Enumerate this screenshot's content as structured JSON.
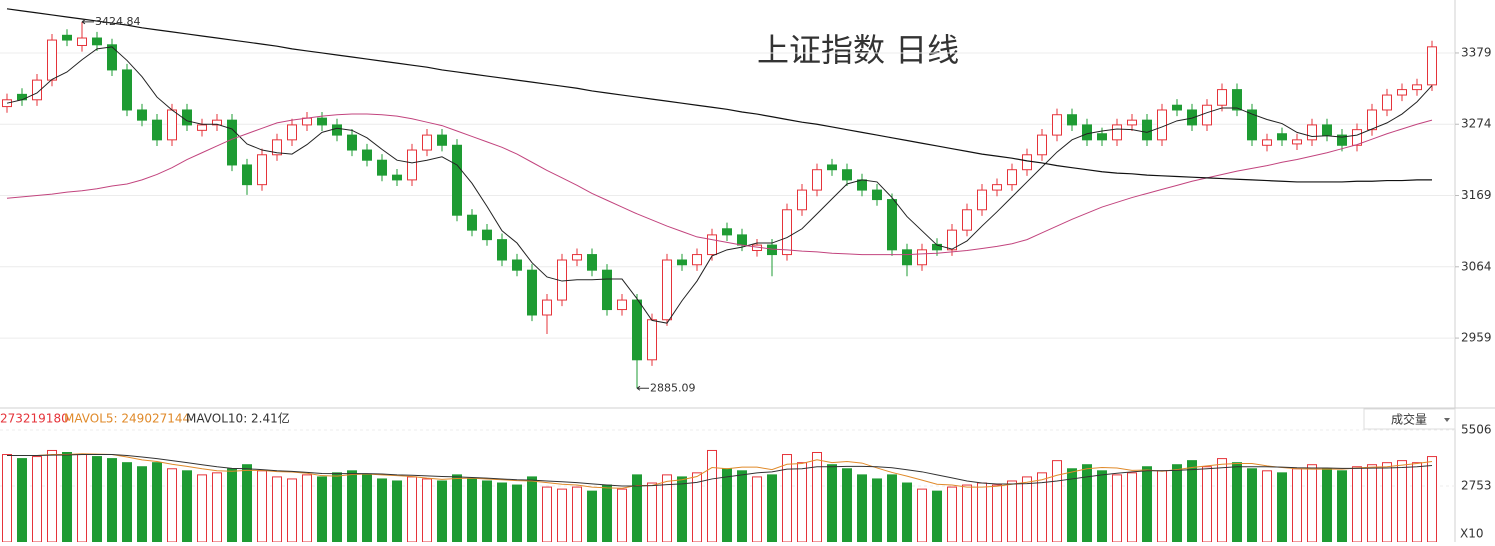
{
  "chart_data": [
    {
      "type": "candlestick",
      "title": "上证指数 日线",
      "ylim": [
        2856,
        3457
      ],
      "yticks": [
        2959,
        3064,
        3169,
        3274,
        3379
      ],
      "grid": true,
      "up_color": "#e5333a",
      "down_color": "#1e9b33",
      "open": [
        3300,
        3318,
        3310,
        3339,
        3405,
        3390,
        3401,
        3391,
        3354,
        3295,
        3280,
        3251,
        3295,
        3265,
        3273,
        3280,
        3214,
        3185,
        3229,
        3251,
        3273,
        3283,
        3273,
        3258,
        3236,
        3221,
        3199,
        3192,
        3236,
        3258,
        3243,
        3140,
        3118,
        3104,
        3074,
        3059,
        2993,
        3015,
        3074,
        3082,
        3059,
        3001,
        3015,
        2927,
        2986,
        3074,
        3067,
        3082,
        3120,
        3111,
        3088,
        3096,
        3082,
        3148,
        3177,
        3214,
        3207,
        3192,
        3177,
        3163,
        3089,
        3067,
        3097,
        3089,
        3118,
        3148,
        3177,
        3185,
        3207,
        3229,
        3258,
        3288,
        3273,
        3260,
        3251,
        3273,
        3280,
        3251,
        3302,
        3295,
        3273,
        3302,
        3325,
        3295,
        3243,
        3260,
        3245,
        3251,
        3273,
        3258,
        3243,
        3266,
        3295,
        3317,
        3325,
        3332
      ],
      "close": [
        3310,
        3310,
        3339,
        3398,
        3398,
        3401,
        3391,
        3354,
        3295,
        3280,
        3251,
        3295,
        3273,
        3273,
        3280,
        3214,
        3185,
        3229,
        3251,
        3273,
        3283,
        3273,
        3258,
        3236,
        3221,
        3199,
        3192,
        3236,
        3258,
        3243,
        3140,
        3118,
        3104,
        3074,
        3059,
        2993,
        3015,
        3074,
        3082,
        3059,
        3001,
        3015,
        2927,
        2986,
        3074,
        3067,
        3082,
        3111,
        3111,
        3096,
        3096,
        3082,
        3148,
        3177,
        3207,
        3207,
        3192,
        3177,
        3163,
        3089,
        3067,
        3089,
        3089,
        3118,
        3148,
        3177,
        3185,
        3207,
        3229,
        3258,
        3288,
        3273,
        3251,
        3251,
        3273,
        3280,
        3251,
        3295,
        3295,
        3273,
        3302,
        3325,
        3295,
        3251,
        3251,
        3251,
        3251,
        3273,
        3258,
        3243,
        3266,
        3295,
        3317,
        3325,
        3332,
        3388
      ],
      "high": [
        3319,
        3327,
        3348,
        3407,
        3414,
        3424.84,
        3410,
        3400,
        3363,
        3304,
        3289,
        3304,
        3304,
        3282,
        3289,
        3289,
        3223,
        3238,
        3260,
        3282,
        3292,
        3292,
        3282,
        3267,
        3245,
        3230,
        3208,
        3245,
        3267,
        3267,
        3252,
        3149,
        3127,
        3113,
        3083,
        3068,
        3024,
        3083,
        3091,
        3091,
        3068,
        3024,
        3024,
        2995,
        3083,
        3083,
        3091,
        3120,
        3129,
        3120,
        3105,
        3105,
        3157,
        3186,
        3216,
        3223,
        3216,
        3201,
        3186,
        3172,
        3098,
        3098,
        3106,
        3127,
        3157,
        3186,
        3194,
        3216,
        3238,
        3267,
        3297,
        3297,
        3282,
        3269,
        3282,
        3289,
        3289,
        3304,
        3311,
        3304,
        3311,
        3334,
        3334,
        3304,
        3260,
        3269,
        3260,
        3282,
        3282,
        3267,
        3275,
        3304,
        3326,
        3334,
        3341,
        3397
      ],
      "low": [
        3291,
        3301,
        3301,
        3330,
        3389,
        3381,
        3382,
        3345,
        3286,
        3271,
        3242,
        3242,
        3264,
        3256,
        3264,
        3205,
        3170,
        3176,
        3220,
        3242,
        3264,
        3264,
        3249,
        3227,
        3212,
        3190,
        3183,
        3183,
        3227,
        3234,
        3131,
        3109,
        3095,
        3065,
        3050,
        2984,
        2965,
        3006,
        3065,
        3050,
        2992,
        2992,
        2885.09,
        2918,
        2977,
        3058,
        3058,
        3073,
        3102,
        3087,
        3079,
        3050,
        3073,
        3139,
        3168,
        3198,
        3183,
        3168,
        3154,
        3080,
        3050,
        3058,
        3080,
        3080,
        3109,
        3139,
        3168,
        3176,
        3198,
        3220,
        3249,
        3264,
        3242,
        3242,
        3242,
        3264,
        3242,
        3242,
        3286,
        3264,
        3264,
        3293,
        3286,
        3242,
        3234,
        3242,
        3236,
        3242,
        3249,
        3234,
        3234,
        3257,
        3286,
        3308,
        3316,
        3323
      ],
      "lines": [
        {
          "color": "#222222",
          "width": 1,
          "values": [
            3305,
            3310,
            3320,
            3340,
            3351,
            3369,
            3385,
            3388,
            3368,
            3344,
            3314,
            3295,
            3279,
            3274,
            3274,
            3267,
            3245,
            3236,
            3232,
            3230,
            3244,
            3262,
            3268,
            3265,
            3254,
            3237,
            3221,
            3217,
            3221,
            3226,
            3214,
            3187,
            3153,
            3117,
            3099,
            3070,
            3049,
            3043,
            3045,
            3045,
            3046,
            3046,
            3017,
            2985,
            2981,
            3014,
            3043,
            3080,
            3089,
            3093,
            3099,
            3099,
            3107,
            3120,
            3142,
            3164,
            3186,
            3192,
            3189,
            3166,
            3138,
            3117,
            3096,
            3090,
            3102,
            3124,
            3145,
            3167,
            3189,
            3211,
            3233,
            3251,
            3260,
            3264,
            3267,
            3266,
            3262,
            3270,
            3279,
            3283,
            3291,
            3298,
            3298,
            3289,
            3281,
            3275,
            3262,
            3256,
            3257,
            3255,
            3258,
            3267,
            3276,
            3289,
            3307,
            3331
          ]
        },
        {
          "color": "#c2447e",
          "width": 1,
          "values": [
            3165,
            3167,
            3169,
            3171,
            3174,
            3176,
            3179,
            3183,
            3186,
            3192,
            3200,
            3210,
            3222,
            3232,
            3242,
            3252,
            3260,
            3268,
            3276,
            3280,
            3283,
            3286,
            3288,
            3289,
            3289,
            3288,
            3286,
            3282,
            3277,
            3272,
            3264,
            3256,
            3248,
            3240,
            3230,
            3218,
            3206,
            3195,
            3184,
            3172,
            3162,
            3152,
            3142,
            3133,
            3124,
            3116,
            3108,
            3104,
            3100,
            3096,
            3093,
            3090,
            3089,
            3087,
            3086,
            3084,
            3083,
            3082,
            3082,
            3082,
            3082,
            3083,
            3084,
            3086,
            3088,
            3091,
            3094,
            3098,
            3104,
            3114,
            3124,
            3134,
            3143,
            3152,
            3159,
            3166,
            3172,
            3178,
            3184,
            3190,
            3195,
            3200,
            3205,
            3209,
            3213,
            3218,
            3222,
            3227,
            3232,
            3238,
            3244,
            3252,
            3260,
            3267,
            3274,
            3280
          ]
        },
        {
          "color": "#111111",
          "width": 1.2,
          "values": [
            3444,
            3441,
            3438,
            3435,
            3432,
            3429,
            3426,
            3423,
            3420,
            3416,
            3413,
            3410,
            3407,
            3404,
            3401,
            3398,
            3395,
            3392,
            3389,
            3385,
            3382,
            3379,
            3376,
            3373,
            3370,
            3367,
            3364,
            3361,
            3358,
            3354,
            3351,
            3348,
            3345,
            3342,
            3339,
            3336,
            3333,
            3330,
            3327,
            3323,
            3320,
            3317,
            3314,
            3311,
            3308,
            3305,
            3302,
            3299,
            3296,
            3292,
            3289,
            3285,
            3281,
            3277,
            3274,
            3270,
            3266,
            3262,
            3258,
            3254,
            3250,
            3246,
            3242,
            3238,
            3234,
            3230,
            3227,
            3224,
            3220,
            3217,
            3213,
            3210,
            3207,
            3204,
            3202,
            3201,
            3199,
            3198,
            3197,
            3196,
            3195,
            3194,
            3193,
            3192,
            3191,
            3190,
            3189,
            3189,
            3189,
            3189,
            3190,
            3190,
            3191,
            3191,
            3192,
            3192
          ]
        }
      ]
    },
    {
      "type": "bar",
      "ylim": [
        0,
        5506
      ],
      "yticks": [
        2753,
        5506
      ],
      "unit_label": "X10",
      "vol_label": "273219180",
      "vol_color": "#e5333a",
      "mavol5_label": "MAVOL5: 249027144",
      "mavol5_color": "#e08a2a",
      "mavol10_label": "MAVOL10: 2.41亿",
      "mavol10_color": "#333333",
      "button": "成交量",
      "values": [
        4300,
        4100,
        4200,
        4500,
        4400,
        4300,
        4200,
        4100,
        3900,
        3700,
        3900,
        3600,
        3500,
        3300,
        3400,
        3600,
        3800,
        3500,
        3200,
        3100,
        3300,
        3200,
        3400,
        3500,
        3300,
        3100,
        3000,
        3200,
        3100,
        3000,
        3300,
        3100,
        3000,
        2900,
        2800,
        3200,
        2700,
        2600,
        2700,
        2500,
        2800,
        2600,
        3300,
        2900,
        3300,
        3200,
        3400,
        4500,
        3600,
        3500,
        3200,
        3300,
        4300,
        3900,
        4400,
        3800,
        3600,
        3300,
        3100,
        3300,
        2900,
        2600,
        2500,
        2700,
        2800,
        2900,
        2800,
        3000,
        3200,
        3400,
        4000,
        3600,
        3800,
        3500,
        3300,
        3400,
        3700,
        3500,
        3800,
        4000,
        3700,
        4100,
        3900,
        3600,
        3500,
        3400,
        3600,
        3800,
        3600,
        3500,
        3700,
        3800,
        3900,
        4000,
        3900,
        4200
      ],
      "lines": [
        {
          "color": "#e08a2a",
          "values": [
            4250,
            4250,
            4250,
            4300,
            4300,
            4340,
            4320,
            4300,
            4180,
            4040,
            3960,
            3820,
            3720,
            3600,
            3500,
            3480,
            3520,
            3520,
            3460,
            3440,
            3380,
            3260,
            3240,
            3320,
            3340,
            3300,
            3260,
            3220,
            3140,
            3080,
            3120,
            3140,
            3100,
            3060,
            3020,
            3000,
            2920,
            2840,
            2800,
            2700,
            2660,
            2640,
            2780,
            2780,
            2980,
            3060,
            3220,
            3660,
            3600,
            3680,
            3680,
            3560,
            3820,
            3860,
            4040,
            3900,
            3960,
            3880,
            3640,
            3420,
            3240,
            3040,
            2840,
            2800,
            2700,
            2700,
            2740,
            2840,
            2940,
            3060,
            3280,
            3440,
            3600,
            3660,
            3640,
            3520,
            3540,
            3480,
            3560,
            3660,
            3740,
            3820,
            3860,
            3860,
            3740,
            3660,
            3600,
            3580,
            3580,
            3580,
            3640,
            3680,
            3700,
            3780,
            3860,
            3960
          ]
        },
        {
          "color": "#333333",
          "values": [
            4250,
            4250,
            4250,
            4270,
            4280,
            4300,
            4300,
            4300,
            4250,
            4180,
            4100,
            4000,
            3900,
            3800,
            3700,
            3620,
            3600,
            3560,
            3500,
            3470,
            3420,
            3370,
            3360,
            3360,
            3360,
            3340,
            3300,
            3280,
            3250,
            3220,
            3200,
            3170,
            3140,
            3100,
            3060,
            3040,
            3000,
            2960,
            2920,
            2860,
            2800,
            2750,
            2750,
            2770,
            2820,
            2860,
            2930,
            3100,
            3200,
            3300,
            3400,
            3450,
            3580,
            3600,
            3700,
            3700,
            3720,
            3720,
            3700,
            3650,
            3550,
            3450,
            3300,
            3150,
            3000,
            2900,
            2850,
            2850,
            2870,
            2920,
            3000,
            3100,
            3200,
            3300,
            3380,
            3450,
            3500,
            3500,
            3520,
            3560,
            3600,
            3650,
            3700,
            3700,
            3700,
            3680,
            3650,
            3640,
            3640,
            3620,
            3620,
            3630,
            3640,
            3660,
            3700,
            3760
          ]
        }
      ]
    }
  ]
}
